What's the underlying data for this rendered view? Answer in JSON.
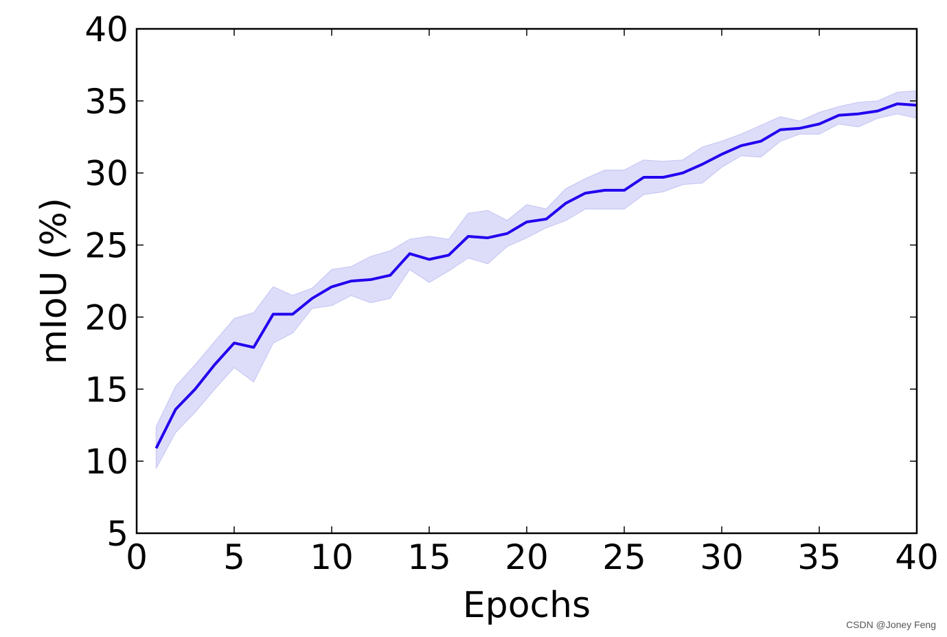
{
  "chart_data": {
    "type": "line",
    "title": "",
    "xlabel": "Epochs",
    "ylabel": "mIoU (%)",
    "xlim": [
      0,
      40
    ],
    "ylim": [
      5,
      40
    ],
    "x_ticks": [
      0,
      5,
      10,
      15,
      20,
      25,
      30,
      35,
      40
    ],
    "y_ticks": [
      5,
      10,
      15,
      20,
      25,
      30,
      35,
      40
    ],
    "grid": false,
    "line_color": "#2200ee",
    "band_color": "#ddddfa",
    "x": [
      1,
      2,
      3,
      4,
      5,
      6,
      7,
      8,
      9,
      10,
      11,
      12,
      13,
      14,
      15,
      16,
      17,
      18,
      19,
      20,
      21,
      22,
      23,
      24,
      25,
      26,
      27,
      28,
      29,
      30,
      31,
      32,
      33,
      34,
      35,
      36,
      37,
      38,
      39,
      40
    ],
    "series": [
      {
        "values": [
          10.9,
          13.6,
          15.0,
          16.7,
          18.2,
          17.9,
          20.2,
          20.2,
          21.3,
          22.1,
          22.5,
          22.6,
          22.9,
          24.4,
          24.0,
          24.3,
          25.6,
          25.5,
          25.8,
          26.6,
          26.8,
          27.9,
          28.6,
          28.8,
          28.8,
          29.7,
          29.7,
          30.0,
          30.6,
          31.3,
          31.9,
          32.2,
          33.0,
          33.1,
          33.4,
          34.0,
          34.1,
          34.3,
          34.8,
          34.7
        ],
        "lower": [
          9.5,
          12.0,
          13.4,
          15.0,
          16.5,
          15.5,
          18.2,
          18.9,
          20.6,
          20.8,
          21.5,
          21.0,
          21.3,
          23.3,
          22.4,
          23.2,
          24.1,
          23.7,
          24.9,
          25.5,
          26.2,
          26.7,
          27.5,
          27.5,
          27.5,
          28.5,
          28.7,
          29.2,
          29.3,
          30.4,
          31.2,
          31.1,
          32.2,
          32.7,
          32.7,
          33.4,
          33.2,
          33.8,
          34.1,
          33.8
        ],
        "upper": [
          12.4,
          15.2,
          16.7,
          18.3,
          19.9,
          20.3,
          22.1,
          21.5,
          22.0,
          23.3,
          23.5,
          24.2,
          24.6,
          25.4,
          25.6,
          25.4,
          27.2,
          27.4,
          26.7,
          27.8,
          27.5,
          28.9,
          29.6,
          30.2,
          30.2,
          30.9,
          30.8,
          30.9,
          31.8,
          32.2,
          32.7,
          33.3,
          33.9,
          33.6,
          34.2,
          34.6,
          34.9,
          35.0,
          35.6,
          35.7
        ]
      }
    ]
  },
  "watermark": "CSDN @Joney Feng"
}
